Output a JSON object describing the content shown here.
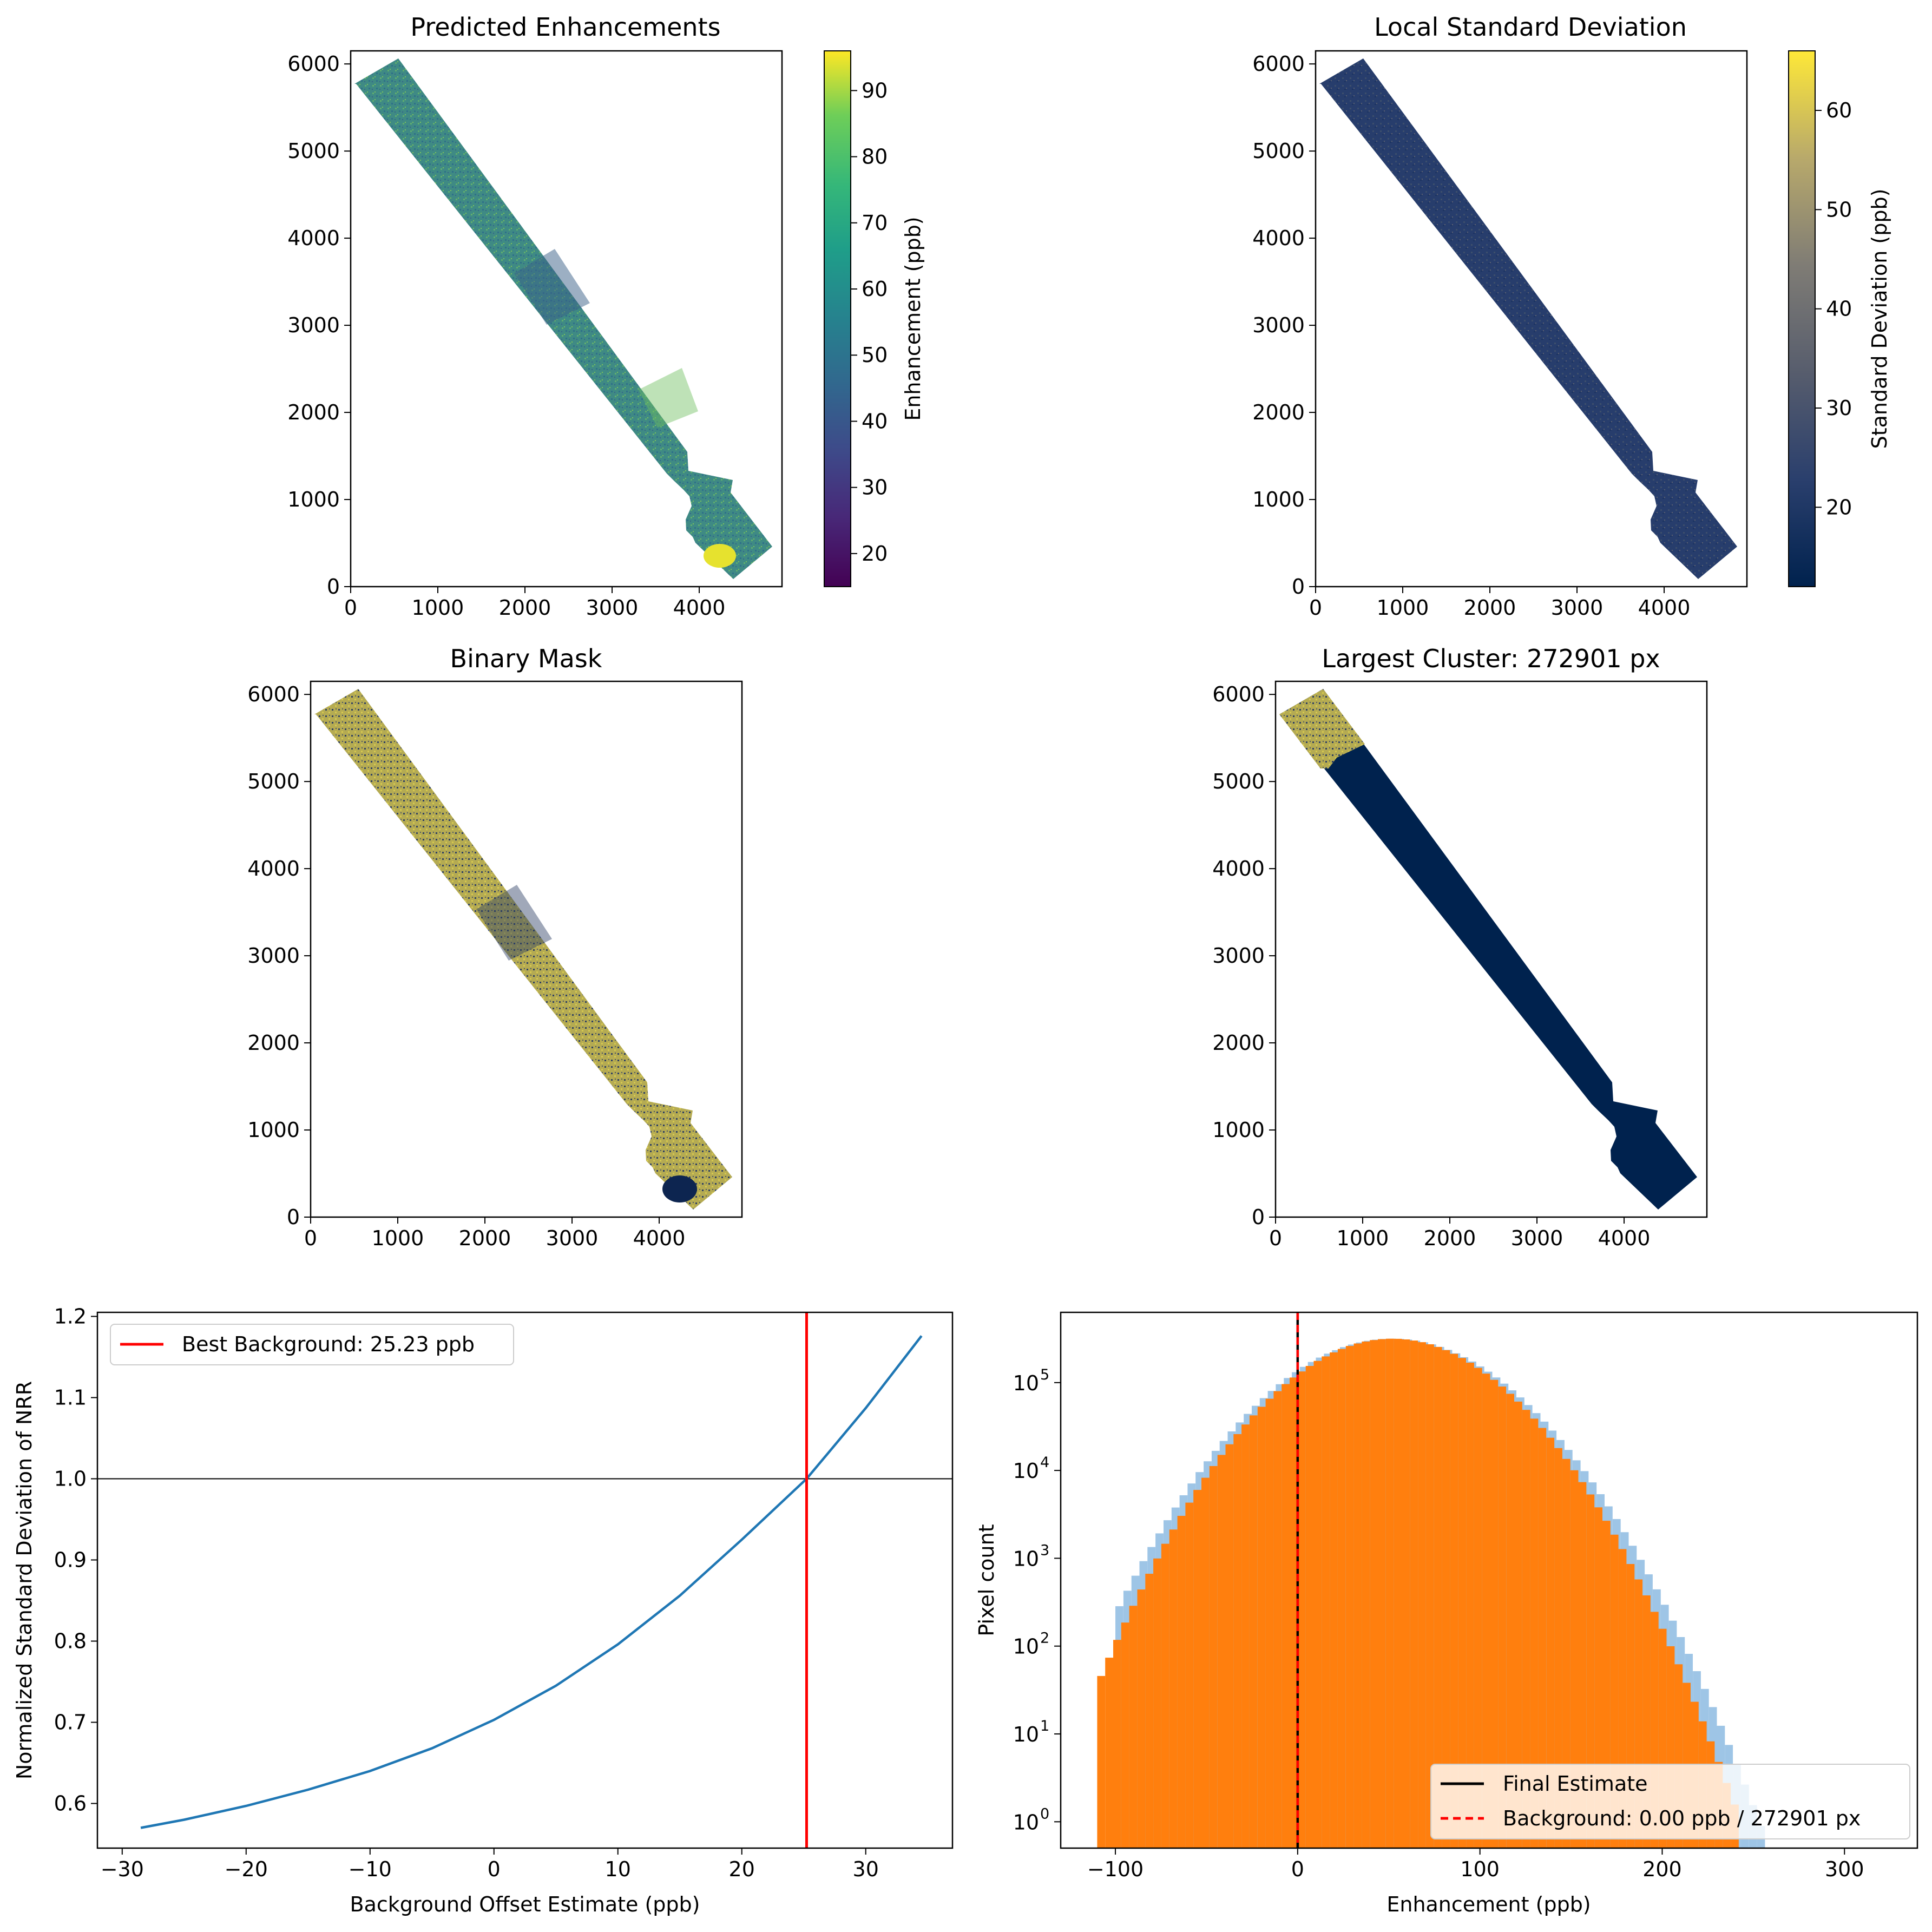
{
  "panels": {
    "enh": {
      "title": "Predicted Enhancements",
      "colorbar": {
        "label": "Enhancement (ppb)",
        "min": 15,
        "max": 96,
        "ticks": [
          20,
          30,
          40,
          50,
          60,
          70,
          80,
          90
        ],
        "colormap": "viridis"
      },
      "x_ticks": [
        0,
        1000,
        2000,
        3000,
        4000
      ],
      "y_ticks": [
        0,
        1000,
        2000,
        3000,
        4000,
        5000,
        6000
      ],
      "xlim": [
        0,
        4950
      ],
      "ylim": [
        0,
        6150
      ]
    },
    "std": {
      "title": "Local Standard Deviation",
      "colorbar": {
        "label": "Standard Deviation (ppb)",
        "min": 12,
        "max": 66,
        "ticks": [
          20,
          30,
          40,
          50,
          60
        ],
        "colormap": "cividis"
      },
      "x_ticks": [
        0,
        1000,
        2000,
        3000,
        4000
      ],
      "y_ticks": [
        0,
        1000,
        2000,
        3000,
        4000,
        5000,
        6000
      ],
      "xlim": [
        0,
        4950
      ],
      "ylim": [
        0,
        6150
      ]
    },
    "mask": {
      "title": "Binary Mask",
      "x_ticks": [
        0,
        1000,
        2000,
        3000,
        4000
      ],
      "y_ticks": [
        0,
        1000,
        2000,
        3000,
        4000,
        5000,
        6000
      ],
      "xlim": [
        0,
        4950
      ],
      "ylim": [
        0,
        6150
      ]
    },
    "cluster": {
      "title": "Largest Cluster: 272901 px",
      "x_ticks": [
        0,
        1000,
        2000,
        3000,
        4000
      ],
      "y_ticks": [
        0,
        1000,
        2000,
        3000,
        4000,
        5000,
        6000
      ],
      "xlim": [
        0,
        4950
      ],
      "ylim": [
        0,
        6150
      ]
    }
  },
  "chart_data": [
    {
      "type": "line",
      "xlabel": "Background Offset Estimate (ppb)",
      "ylabel": "Normalized Standard Deviation of NRR",
      "xlim": [
        -32,
        37
      ],
      "ylim": [
        0.545,
        1.205
      ],
      "x_ticks": [
        -30,
        -20,
        -10,
        0,
        10,
        20,
        30
      ],
      "x_tick_labels": [
        "−30",
        "−20",
        "−10",
        "0",
        "10",
        "20",
        "30"
      ],
      "y_ticks": [
        0.6,
        0.7,
        0.8,
        0.9,
        1.0,
        1.1,
        1.2
      ],
      "y_tick_labels": [
        "0.6",
        "0.7",
        "0.8",
        "0.9",
        "1.0",
        "1.1",
        "1.2"
      ],
      "series": [
        {
          "color": "#1f77b4",
          "x": [
            -28.5,
            -25,
            -20,
            -15,
            -10,
            -5,
            0,
            5,
            10,
            15,
            20,
            25.23,
            30,
            34.5
          ],
          "y": [
            0.57,
            0.58,
            0.597,
            0.617,
            0.64,
            0.668,
            0.703,
            0.745,
            0.796,
            0.856,
            0.925,
            1.0,
            1.087,
            1.176
          ]
        }
      ],
      "hline": {
        "y": 1.0,
        "color": "#000000"
      },
      "vline": {
        "x": 25.23,
        "color": "#ff0000"
      },
      "legend": {
        "position": "upper-left",
        "entries": [
          {
            "label": "Best Background: 25.23 ppb",
            "color": "#ff0000",
            "style": "solid"
          }
        ]
      }
    },
    {
      "type": "bar",
      "scale": "log",
      "xlabel": "Enhancement (ppb)",
      "ylabel": "Pixel count",
      "xlim": [
        -130,
        340
      ],
      "ylim_log10": [
        -0.3,
        5.8
      ],
      "x_ticks": [
        -100,
        0,
        100,
        200,
        300
      ],
      "x_tick_labels": [
        "−100",
        "0",
        "100",
        "200",
        "300"
      ],
      "y_ticks_log10": [
        0,
        1,
        2,
        3,
        4,
        5
      ],
      "y_tick_labels": [
        "10",
        "10",
        "10",
        "10",
        "10",
        "10"
      ],
      "y_tick_exponents": [
        "0",
        "1",
        "2",
        "3",
        "4",
        "5"
      ],
      "bin_width": 4.4,
      "series": [
        {
          "color": "#ff7f0e",
          "x_start": -110,
          "x_end": 330,
          "peak_x": 52,
          "peak_log10": 5.5,
          "sigma": 38
        },
        {
          "color": "#9ec5e6",
          "x_start": -100,
          "x_end": 330,
          "peak_x": 52,
          "peak_log10": 5.5,
          "sigma": 40
        }
      ],
      "vlines": [
        {
          "x": 0,
          "color": "#000000",
          "style": "solid"
        },
        {
          "x": 0,
          "color": "#ff0000",
          "style": "dashed"
        }
      ],
      "legend": {
        "position": "lower-right",
        "entries": [
          {
            "label": "Final Estimate",
            "color": "#000000",
            "style": "solid"
          },
          {
            "label": "Background: 0.00 ppb / 272901 px",
            "color": "#ff0000",
            "style": "dashed"
          }
        ]
      }
    }
  ]
}
